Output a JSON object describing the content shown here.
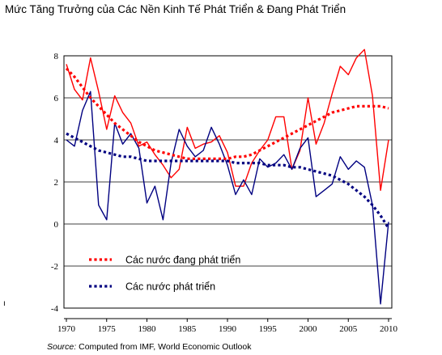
{
  "title": "Mức Tăng Trưởng của Các Nền Kinh Tế Phát Triển & Đang Phát Triển",
  "source": {
    "label": "Source:",
    "text": " Computed from IMF, World Economic Outlook"
  },
  "stray_mark": "ı",
  "chart_data": {
    "type": "line",
    "title": "Mức Tăng Trưởng của Các Nền Kinh Tế Phát Triển & Đang Phát Triển",
    "xlabel": "",
    "ylabel": "",
    "xlim": [
      1970,
      2010
    ],
    "ylim": [
      -4,
      8
    ],
    "x_ticks": [
      1970,
      1975,
      1980,
      1985,
      1990,
      1995,
      2000,
      2005,
      2010
    ],
    "y_ticks": [
      -4,
      -2,
      0,
      2,
      4,
      6,
      8
    ],
    "grid": "horizontal",
    "legend_position": "bottom-left",
    "x": [
      1970,
      1971,
      1972,
      1973,
      1974,
      1975,
      1976,
      1977,
      1978,
      1979,
      1980,
      1981,
      1982,
      1983,
      1984,
      1985,
      1986,
      1987,
      1988,
      1989,
      1990,
      1991,
      1992,
      1993,
      1994,
      1995,
      1996,
      1997,
      1998,
      1999,
      2000,
      2001,
      2002,
      2003,
      2004,
      2005,
      2006,
      2007,
      2008,
      2009,
      2010
    ],
    "series": [
      {
        "name": "developing-actual",
        "color": "#ff0000",
        "style": "solid",
        "values": [
          7.6,
          6.4,
          5.9,
          7.9,
          6.3,
          4.5,
          6.1,
          5.3,
          4.8,
          3.7,
          3.9,
          3.3,
          2.8,
          2.2,
          2.6,
          4.6,
          3.6,
          3.8,
          3.9,
          4.2,
          3.4,
          1.8,
          1.8,
          2.9,
          3.5,
          4.0,
          5.1,
          5.1,
          2.6,
          3.5,
          6.0,
          3.8,
          4.8,
          6.2,
          7.5,
          7.1,
          7.9,
          8.3,
          6.1,
          1.6,
          4.0
        ]
      },
      {
        "name": "advanced-actual",
        "color": "#000080",
        "style": "solid",
        "values": [
          4.0,
          3.7,
          5.4,
          6.3,
          0.9,
          0.2,
          4.8,
          3.8,
          4.3,
          3.6,
          1.0,
          1.8,
          0.2,
          2.9,
          4.5,
          3.7,
          3.2,
          3.5,
          4.6,
          3.8,
          2.8,
          1.4,
          2.1,
          1.4,
          3.1,
          2.7,
          2.9,
          3.3,
          2.6,
          3.6,
          4.1,
          1.3,
          1.6,
          1.9,
          3.2,
          2.6,
          3.0,
          2.7,
          0.9,
          -3.8,
          0.1
        ]
      },
      {
        "name": "Các nước đang phát triển",
        "color": "#ff0000",
        "style": "dotted",
        "values": [
          7.4,
          7.0,
          6.5,
          6.0,
          5.6,
          5.2,
          4.8,
          4.5,
          4.2,
          3.9,
          3.7,
          3.5,
          3.4,
          3.3,
          3.2,
          3.1,
          3.1,
          3.1,
          3.1,
          3.1,
          3.1,
          3.2,
          3.2,
          3.3,
          3.5,
          3.7,
          3.9,
          4.1,
          4.3,
          4.5,
          4.7,
          4.9,
          5.1,
          5.3,
          5.4,
          5.5,
          5.6,
          5.6,
          5.6,
          5.6,
          5.5
        ]
      },
      {
        "name": "Các nước phát triển",
        "color": "#000080",
        "style": "dotted",
        "values": [
          4.3,
          4.1,
          3.9,
          3.7,
          3.5,
          3.4,
          3.3,
          3.2,
          3.2,
          3.1,
          3.0,
          3.0,
          3.0,
          3.0,
          3.0,
          3.0,
          3.0,
          3.0,
          3.0,
          3.0,
          3.0,
          2.9,
          2.9,
          2.9,
          2.9,
          2.8,
          2.8,
          2.8,
          2.7,
          2.7,
          2.6,
          2.5,
          2.4,
          2.3,
          2.1,
          1.9,
          1.6,
          1.3,
          0.9,
          0.4,
          -0.2
        ]
      }
    ],
    "legend": [
      {
        "label": "Các nước đang phát triển",
        "color": "#ff0000",
        "style": "dotted"
      },
      {
        "label": "Các nước phát triển",
        "color": "#000080",
        "style": "dotted"
      }
    ]
  }
}
